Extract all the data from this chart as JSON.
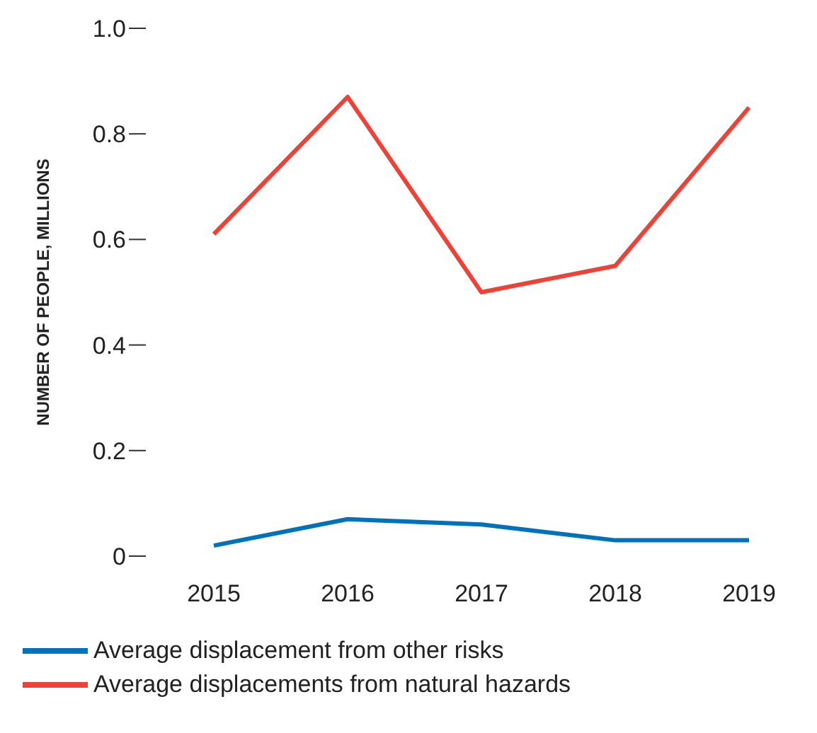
{
  "chart_data": {
    "type": "line",
    "ylabel": "NUMBER OF PEOPLE, MILLIONS",
    "categories": [
      "2015",
      "2016",
      "2017",
      "2018",
      "2019"
    ],
    "series": [
      {
        "name": "Average displacement from other risks",
        "color": "#0072bc",
        "values": [
          0.02,
          0.07,
          0.06,
          0.03,
          0.03
        ]
      },
      {
        "name": "Average displacements from natural hazards",
        "color": "#ef4135",
        "values": [
          0.61,
          0.87,
          0.5,
          0.55,
          0.85
        ]
      }
    ],
    "ylim": [
      0,
      1
    ],
    "yticks": [
      0,
      0.2,
      0.4,
      0.6,
      0.8,
      {
        "value": 1,
        "label": "1.0"
      }
    ],
    "grid": false,
    "legend": "bottom",
    "marker": "none",
    "line_style": "solid"
  }
}
